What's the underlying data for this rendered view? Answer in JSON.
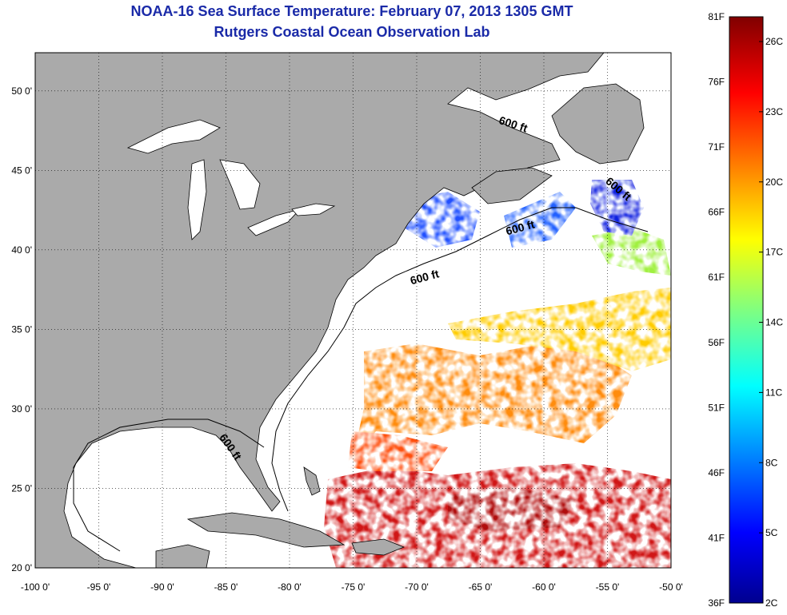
{
  "header": {
    "title": "NOAA-16 Sea Surface Temperature:  February 07, 2013 1305 GMT",
    "subtitle": "Rutgers Coastal Ocean Observation Lab"
  },
  "map": {
    "lon_ticks": [
      "-100 0'",
      "-95 0'",
      "-90 0'",
      "-85 0'",
      "-80 0'",
      "-75 0'",
      "-70 0'",
      "-65 0'",
      "-60 0'",
      "-55 0'",
      "-50 0'"
    ],
    "lat_ticks": [
      "20 0'",
      "25 0'",
      "30 0'",
      "35 0'",
      "40 0'",
      "45 0'",
      "50 0'"
    ],
    "contour_labels": [
      "600 ft",
      "600 ft",
      "600 ft",
      "600 ft",
      "600 ft"
    ],
    "colors": {
      "land": "#aaaaaa",
      "ocean": "#ffffff",
      "grid": "#000000"
    }
  },
  "colorbar": {
    "f_labels": [
      "81F",
      "76F",
      "71F",
      "66F",
      "61F",
      "56F",
      "51F",
      "46F",
      "41F",
      "36F"
    ],
    "c_labels": [
      "26C",
      "23C",
      "20C",
      "17C",
      "14C",
      "11C",
      "8C",
      "5C",
      "2C"
    ]
  }
}
